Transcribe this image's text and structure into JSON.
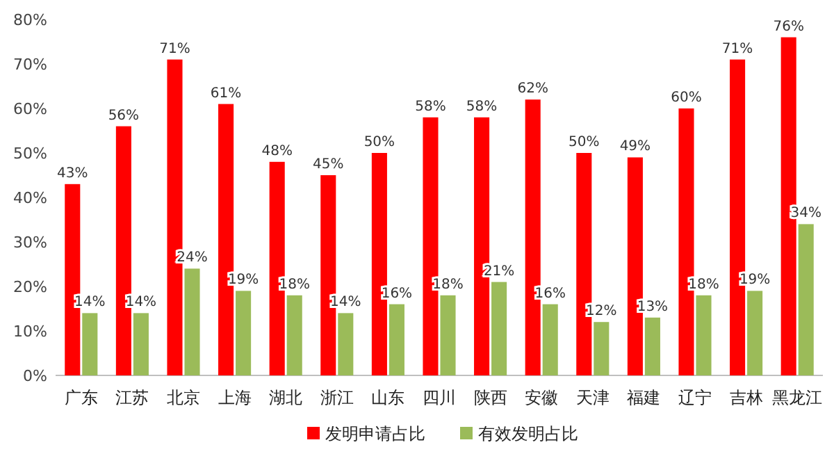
{
  "chart_data": {
    "type": "bar",
    "categories": [
      "广东",
      "江苏",
      "北京",
      "上海",
      "湖北",
      "浙江",
      "山东",
      "四川",
      "陕西",
      "安徽",
      "天津",
      "福建",
      "辽宁",
      "吉林",
      "黑龙江"
    ],
    "series": [
      {
        "name": "发明申请占比",
        "color": "#ff0000",
        "values": [
          43,
          56,
          71,
          61,
          48,
          45,
          50,
          58,
          58,
          62,
          50,
          49,
          60,
          71,
          76
        ],
        "value_labels": [
          "43%",
          "56%",
          "71%",
          "61%",
          "48%",
          "45%",
          "50%",
          "58%",
          "58%",
          "62%",
          "50%",
          "49%",
          "60%",
          "71%",
          "76%"
        ]
      },
      {
        "name": "有效发明占比",
        "color": "#9bbb59",
        "values": [
          14,
          14,
          24,
          19,
          18,
          14,
          16,
          18,
          21,
          16,
          12,
          13,
          18,
          19,
          34
        ],
        "value_labels": [
          "14%",
          "14%",
          "24%",
          "19%",
          "18%",
          "14%",
          "16%",
          "18%",
          "21%",
          "16%",
          "12%",
          "13%",
          "18%",
          "19%",
          "34%"
        ]
      }
    ],
    "ylim": [
      0,
      80
    ],
    "yticks": [
      {
        "value": 0,
        "label": "0%"
      },
      {
        "value": 10,
        "label": "10%"
      },
      {
        "value": 20,
        "label": "20%"
      },
      {
        "value": 30,
        "label": "30%"
      },
      {
        "value": 40,
        "label": "40%"
      },
      {
        "value": 50,
        "label": "50%"
      },
      {
        "value": 60,
        "label": "60%"
      },
      {
        "value": 70,
        "label": "70%"
      },
      {
        "value": 80,
        "label": "80%"
      }
    ],
    "legend": "bottom"
  }
}
